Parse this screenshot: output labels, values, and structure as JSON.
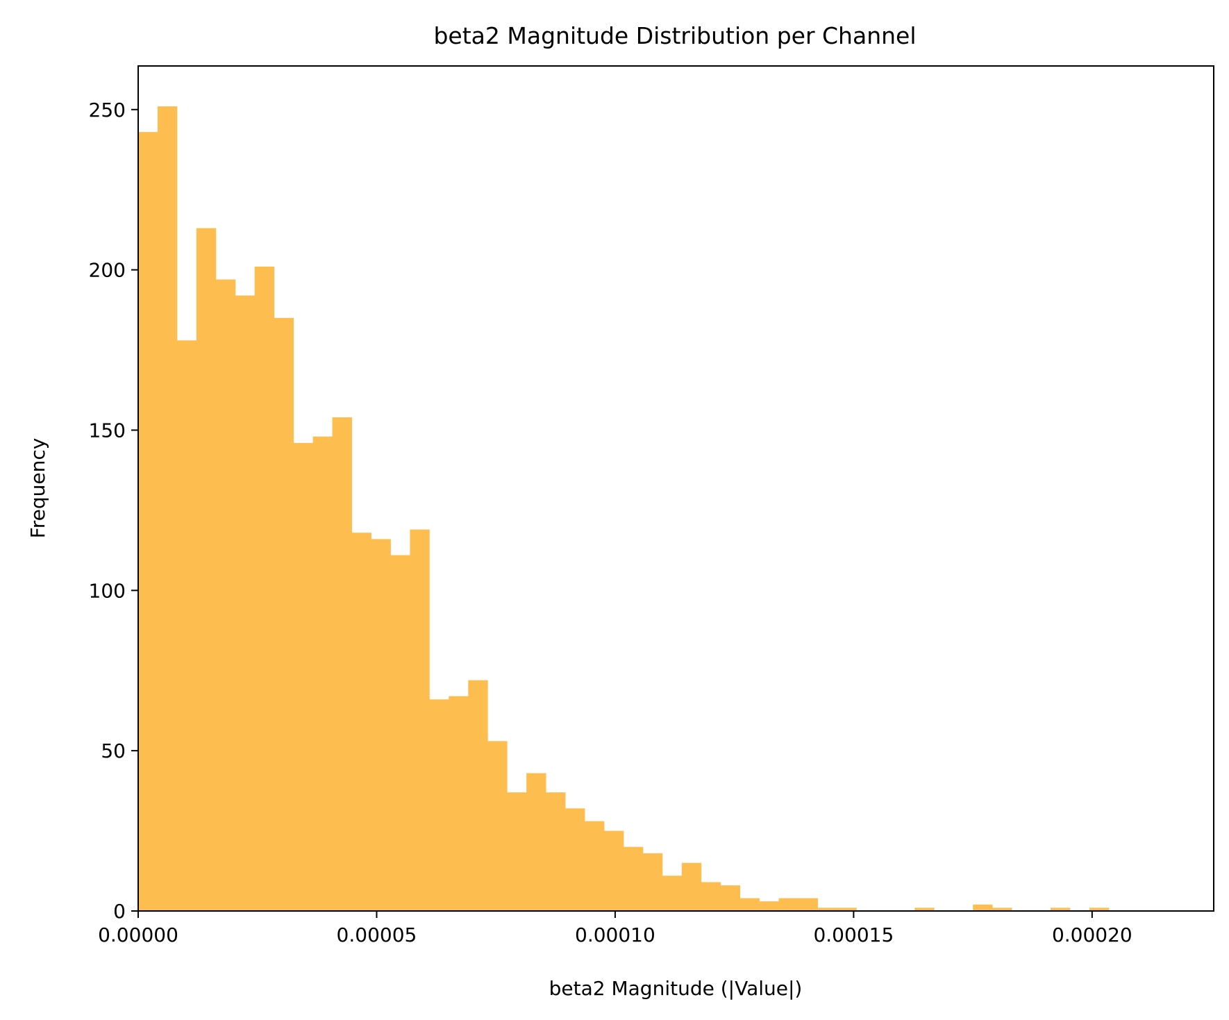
{
  "chart_data": {
    "type": "bar",
    "title": "beta2 Magnitude Distribution per Channel",
    "xlabel": "beta2 Magnitude (|Value|)",
    "ylabel": "Frequency",
    "xlim": [
      0,
      0.0002255
    ],
    "ylim": [
      0,
      263.6
    ],
    "x_ticks": [
      0,
      5e-05,
      0.0001,
      0.00015,
      0.0002
    ],
    "x_tick_labels": [
      "0.00000",
      "0.00005",
      "0.00010",
      "0.00015",
      "0.00020"
    ],
    "y_ticks": [
      0,
      50,
      100,
      150,
      200,
      250
    ],
    "y_tick_labels": [
      "0",
      "50",
      "100",
      "150",
      "200",
      "250"
    ],
    "bin_width": 4.07e-06,
    "bin_start": 0,
    "values": [
      243,
      251,
      178,
      213,
      197,
      192,
      201,
      185,
      146,
      148,
      154,
      118,
      116,
      111,
      119,
      66,
      67,
      72,
      53,
      37,
      43,
      37,
      32,
      28,
      25,
      20,
      18,
      11,
      15,
      9,
      8,
      4,
      3,
      4,
      4,
      1,
      1,
      0,
      0,
      0,
      1,
      0,
      0,
      2,
      1,
      0,
      0,
      1,
      0,
      1,
      0
    ],
    "bar_color": "#fdbd4f",
    "grid": false
  }
}
